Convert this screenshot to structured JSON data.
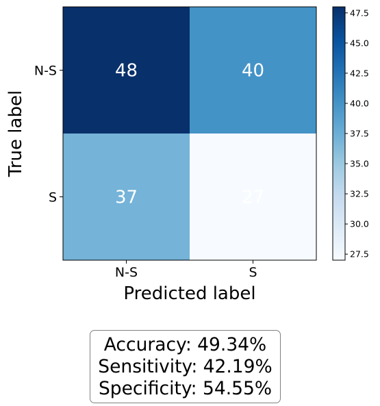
{
  "chart_data": {
    "type": "heatmap",
    "title": "",
    "xlabel": "Predicted label",
    "ylabel": "True label",
    "x_categories": [
      "N-S",
      "S"
    ],
    "y_categories": [
      "N-S",
      "S"
    ],
    "matrix": [
      [
        48,
        40
      ],
      [
        37,
        27
      ]
    ],
    "colormap": "Blues",
    "colorbar": {
      "range": [
        27,
        48
      ],
      "ticks": [
        27.5,
        30.0,
        32.5,
        35.0,
        37.5,
        40.0,
        42.5,
        45.0,
        47.5
      ]
    },
    "cell_text_color": "#ffffff",
    "grid": false
  },
  "metrics": {
    "accuracy": "Accuracy: 49.34%",
    "sensitivity": "Sensitivity: 42.19%",
    "specificity": "Specificity: 54.55%"
  }
}
